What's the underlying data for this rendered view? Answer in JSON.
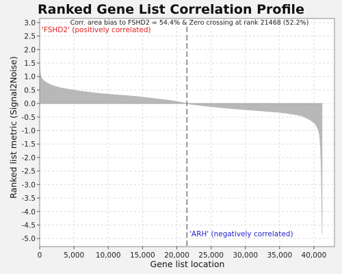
{
  "chart_data": {
    "type": "area",
    "title": "Ranked Gene List Correlation Profile",
    "subtitle": "Corr. area bias to FSHD2 = 54.4% & Zero crossing at rank 21468 (52.2%)",
    "xlabel": "Gene list location",
    "ylabel": "Ranked list metric (Signal2Noise)",
    "xlim": [
      0,
      43000
    ],
    "ylim": [
      -5.3,
      3.15
    ],
    "x_ticks": [
      0,
      5000,
      10000,
      15000,
      20000,
      25000,
      30000,
      35000,
      40000
    ],
    "x_tick_labels": [
      "0",
      "5,000",
      "10,000",
      "15,000",
      "20,000",
      "25,000",
      "30,000",
      "35,000",
      "40,000"
    ],
    "y_ticks": [
      3.0,
      2.5,
      2.0,
      1.5,
      1.0,
      0.5,
      0.0,
      -0.5,
      -1.0,
      -1.5,
      -2.0,
      -2.5,
      -3.0,
      -3.5,
      -4.0,
      -4.5,
      -5.0
    ],
    "y_tick_labels": [
      "3.0",
      "2.5",
      "2.0",
      "1.5",
      "1.0",
      "0.5",
      "0.0",
      "-0.5",
      "-1.0",
      "-1.5",
      "-2.0",
      "-2.5",
      "-3.0",
      "-3.5",
      "-4.0",
      "-4.5",
      "-5.0"
    ],
    "grid": true,
    "zero_crossing_rank": 21468,
    "series": [
      {
        "color": "#b8b8b8",
        "x": [
          0,
          50,
          150,
          300,
          600,
          1000,
          1500,
          2000,
          3000,
          4000,
          5000,
          6000,
          7000,
          8000,
          9000,
          10000,
          11000,
          12000,
          13000,
          14000,
          15000,
          16000,
          17000,
          18000,
          19000,
          20000,
          21000,
          21468,
          22000,
          23000,
          24000,
          25000,
          26000,
          27000,
          28000,
          29000,
          30000,
          31000,
          32000,
          33000,
          34000,
          35000,
          36000,
          37000,
          38000,
          38500,
          39000,
          39500,
          40000,
          40300,
          40600,
          40800,
          40950,
          41050,
          41100,
          41150,
          41200
        ],
        "y": [
          1.65,
          1.25,
          1.05,
          0.95,
          0.85,
          0.78,
          0.71,
          0.66,
          0.59,
          0.54,
          0.5,
          0.46,
          0.43,
          0.4,
          0.37,
          0.35,
          0.33,
          0.31,
          0.29,
          0.27,
          0.24,
          0.21,
          0.18,
          0.15,
          0.12,
          0.08,
          0.03,
          0.0,
          -0.03,
          -0.06,
          -0.09,
          -0.12,
          -0.14,
          -0.17,
          -0.19,
          -0.21,
          -0.23,
          -0.25,
          -0.27,
          -0.29,
          -0.31,
          -0.33,
          -0.36,
          -0.4,
          -0.45,
          -0.49,
          -0.55,
          -0.62,
          -0.72,
          -0.8,
          -0.95,
          -1.15,
          -1.6,
          -2.4,
          -3.2,
          -4.2,
          -4.85
        ]
      }
    ],
    "annotations": [
      {
        "text": "'FSHD2' (positively correlated)",
        "color": "#e02020"
      },
      {
        "text": "'ARH' (negatively correlated)",
        "color": "#2222cc"
      }
    ]
  }
}
